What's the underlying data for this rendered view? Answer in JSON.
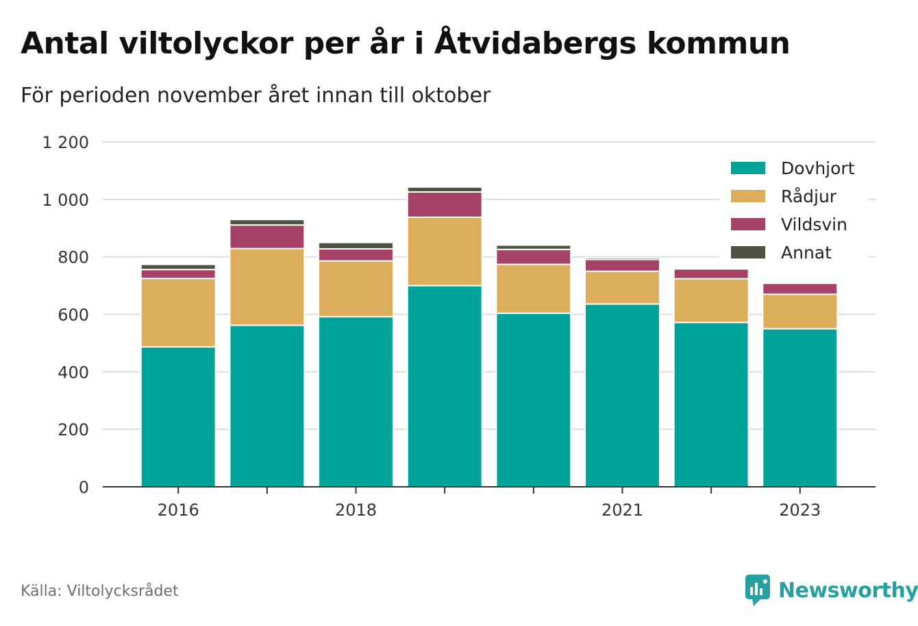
{
  "title": "Antal viltolyckor per år i Åtvidabergs kommun",
  "subtitle": "För perioden november året innan till oktober",
  "source": "Källa: Viltolycksrådet",
  "brand": "Newsworthy",
  "colors": {
    "Dovhjort": "#00a39a",
    "Rådjur": "#dcad5a",
    "Vildsvin": "#a64167",
    "Annat": "#4d5243",
    "brand": "#26a0a0"
  },
  "chart_data": {
    "type": "bar",
    "stacked": true,
    "categories": [
      "2016",
      "2017",
      "2018",
      "2019",
      "2020",
      "2021",
      "2022",
      "2023"
    ],
    "x_tick_labels": [
      "2016",
      "",
      "2018",
      "",
      "",
      "2021",
      "",
      "2023"
    ],
    "series": [
      {
        "name": "Dovhjort",
        "values": [
          487,
          562,
          592,
          700,
          604,
          636,
          572,
          550
        ]
      },
      {
        "name": "Rådjur",
        "values": [
          238,
          267,
          194,
          238,
          170,
          114,
          152,
          120
        ]
      },
      {
        "name": "Vildsvin",
        "values": [
          31,
          82,
          42,
          88,
          52,
          41,
          34,
          38
        ]
      },
      {
        "name": "Annat",
        "values": [
          18,
          19,
          22,
          17,
          15,
          6,
          0,
          0
        ]
      }
    ],
    "y_ticks": [
      0,
      200,
      400,
      600,
      800,
      1000,
      1200
    ],
    "y_tick_labels": [
      "0",
      "200",
      "400",
      "600",
      "800",
      "1 000",
      "1 200"
    ],
    "ylim": [
      0,
      1200
    ],
    "grid": true,
    "legend_position": "top-right"
  }
}
